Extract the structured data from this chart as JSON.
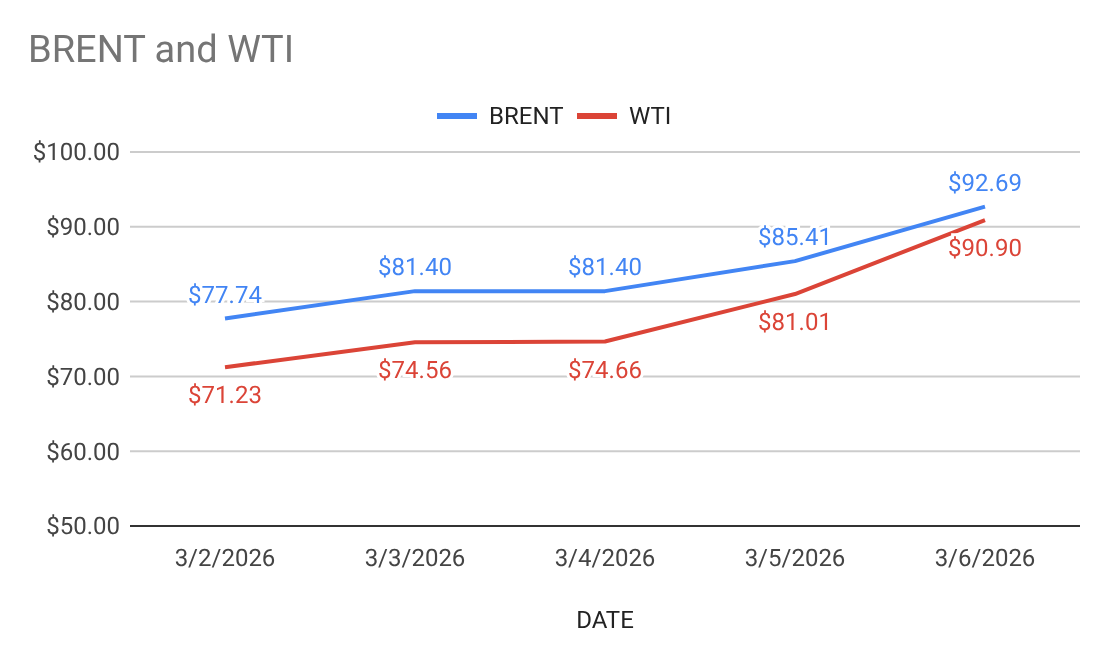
{
  "chart_data": {
    "type": "line",
    "title": "BRENT and WTI",
    "xlabel": "DATE",
    "categories": [
      "3/2/2026",
      "3/3/2026",
      "3/4/2026",
      "3/5/2026",
      "3/6/2026"
    ],
    "series": [
      {
        "name": "BRENT",
        "color": "#4285f4",
        "values": [
          77.74,
          81.4,
          81.4,
          85.41,
          92.69
        ],
        "value_labels": [
          "$77.74",
          "$81.40",
          "$81.40",
          "$85.41",
          "$92.69"
        ]
      },
      {
        "name": "WTI",
        "color": "#db4437",
        "values": [
          71.23,
          74.56,
          74.66,
          81.01,
          90.9
        ],
        "value_labels": [
          "$71.23",
          "$74.56",
          "$74.66",
          "$81.01",
          "$90.90"
        ]
      }
    ],
    "ylim": [
      50,
      100
    ],
    "yticks": [
      {
        "value": 50,
        "label": "$50.00"
      },
      {
        "value": 60,
        "label": "$60.00"
      },
      {
        "value": 70,
        "label": "$70.00"
      },
      {
        "value": 80,
        "label": "$80.00"
      },
      {
        "value": 90,
        "label": "$90.00"
      },
      {
        "value": 100,
        "label": "$100.00"
      }
    ],
    "grid": "y",
    "legend": "top",
    "marker": "none",
    "line_style": "solid"
  }
}
